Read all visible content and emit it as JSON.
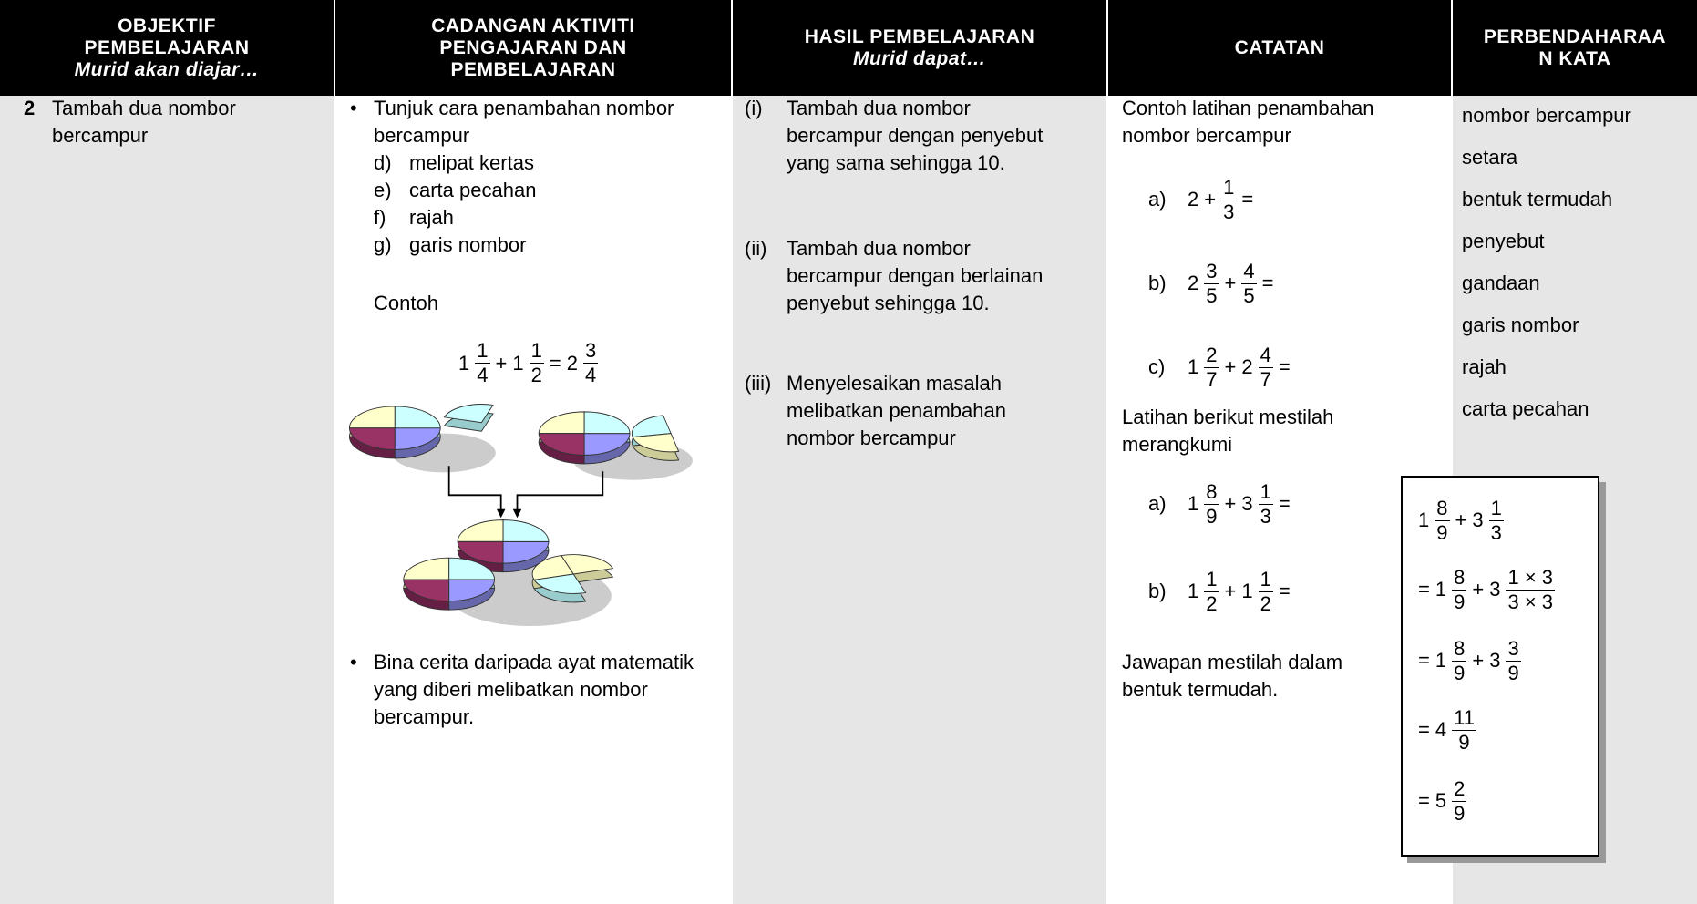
{
  "headers": [
    {
      "lines": [
        "OBJEKTIF",
        "PEMBELAJARAN"
      ],
      "subtitle": "Murid akan diajar…"
    },
    {
      "lines": [
        "CADANGAN AKTIVITI",
        "PENGAJARAN DAN",
        "PEMBELAJARAN"
      ]
    },
    {
      "lines": [
        "HASIL PEMBELAJARAN"
      ],
      "subtitle": "Murid dapat…"
    },
    {
      "lines": [
        "CATATAN"
      ]
    },
    {
      "lines": [
        "PERBENDAHARAA",
        "N KATA"
      ]
    }
  ],
  "objective": {
    "number": "2",
    "text": "Tambah dua nombor bercampur"
  },
  "activities": {
    "bullet1": "Tunjuk cara penambahan nombor bercampur",
    "methods": [
      {
        "label": "d)",
        "text": "melipat kertas"
      },
      {
        "label": "e)",
        "text": "carta pecahan"
      },
      {
        "label": "f)",
        "text": "rajah"
      },
      {
        "label": "g)",
        "text": "garis nombor"
      }
    ],
    "example_label": "Contoh",
    "example": [
      "1",
      {
        "n": "1",
        "d": "4"
      },
      "+",
      "1",
      {
        "n": "1",
        "d": "2"
      },
      "=",
      "2",
      {
        "n": "3",
        "d": "4"
      }
    ],
    "bullet2": "Bina cerita daripada ayat matematik yang diberi melibatkan nombor bercampur."
  },
  "outcomes": [
    {
      "label": "(i)",
      "text": "Tambah dua nombor bercampur dengan penyebut yang sama sehingga 10."
    },
    {
      "label": "(ii)",
      "text": "Tambah dua nombor bercampur dengan berlainan penyebut sehingga 10."
    },
    {
      "label": "(iii)",
      "text": "Menyelesaikan masalah melibatkan penambahan nombor bercampur"
    }
  ],
  "notes": {
    "intro": "Contoh latihan penambahan nombor bercampur",
    "exercises": [
      {
        "label": "a)",
        "expr": [
          "2",
          "+",
          {
            "n": "1",
            "d": "3"
          },
          "="
        ]
      },
      {
        "label": "b)",
        "expr": [
          "2",
          {
            "n": "3",
            "d": "5"
          },
          "+",
          {
            "n": "4",
            "d": "5"
          },
          "="
        ]
      },
      {
        "label": "c)",
        "expr": [
          "1",
          {
            "n": "2",
            "d": "7"
          },
          "+",
          "2",
          {
            "n": "4",
            "d": "7"
          },
          "="
        ]
      }
    ],
    "summary": "Latihan berikut mestilah merangkumi",
    "required": [
      {
        "label": "a)",
        "expr": [
          "1",
          {
            "n": "8",
            "d": "9"
          },
          "+",
          "3",
          {
            "n": "1",
            "d": "3"
          },
          "="
        ]
      },
      {
        "label": "b)",
        "expr": [
          "1",
          {
            "n": "1",
            "d": "2"
          },
          "+",
          "1",
          {
            "n": "1",
            "d": "2"
          },
          "="
        ]
      }
    ],
    "conclusion": "Jawapan mestilah dalam bentuk termudah.",
    "working": [
      [
        "1",
        {
          "n": "8",
          "d": "9"
        },
        "+",
        "3",
        {
          "n": "1",
          "d": "3"
        }
      ],
      [
        "=",
        "1",
        {
          "n": "8",
          "d": "9"
        },
        "+",
        "3",
        {
          "n": "1 × 3",
          "d": "3 × 3"
        }
      ],
      [
        "=",
        "1",
        {
          "n": "8",
          "d": "9"
        },
        "+",
        "3",
        {
          "n": "3",
          "d": "9"
        }
      ],
      [
        "=",
        "4",
        {
          "n": "11",
          "d": "9"
        }
      ],
      [
        "=",
        "5",
        {
          "n": "2",
          "d": "9"
        }
      ]
    ]
  },
  "vocabulary": [
    "nombor bercampur",
    "setara",
    "bentuk termudah",
    "penyebut",
    "gandaan",
    "garis nombor",
    "rajah",
    "carta pecahan"
  ]
}
